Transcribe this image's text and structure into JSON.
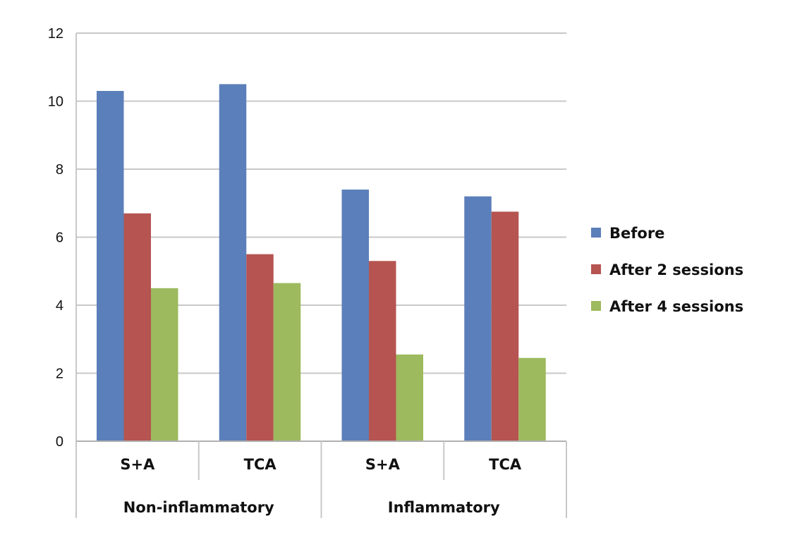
{
  "chart_data": {
    "type": "bar",
    "title": "",
    "xlabel": "",
    "ylabel": "",
    "ylim": [
      0,
      12
    ],
    "yticks": [
      0,
      2,
      4,
      6,
      8,
      10,
      12
    ],
    "grid": true,
    "legend_position": "right",
    "categories": [
      "S+A",
      "TCA",
      "S+A",
      "TCA"
    ],
    "groups": [
      {
        "label": "Non-inflammatory",
        "span": [
          0,
          1
        ]
      },
      {
        "label": "Inflammatory",
        "span": [
          2,
          3
        ]
      }
    ],
    "series": [
      {
        "name": "Before",
        "color": "#5b7fba",
        "values": [
          10.3,
          10.5,
          7.4,
          7.2
        ]
      },
      {
        "name": "After 2 sessions",
        "color": "#b55450",
        "values": [
          6.7,
          5.5,
          5.3,
          6.75
        ]
      },
      {
        "name": "After 4 sessions",
        "color": "#9dba5e",
        "values": [
          4.5,
          4.65,
          2.55,
          2.45
        ]
      }
    ]
  }
}
